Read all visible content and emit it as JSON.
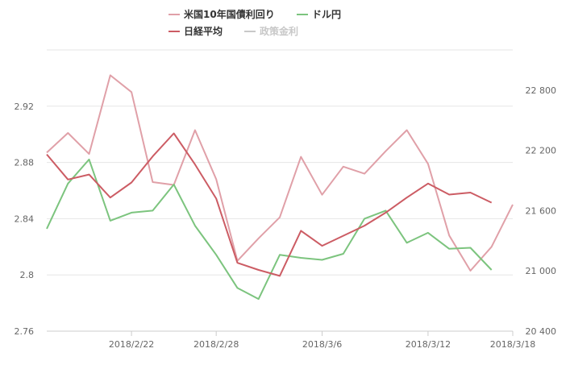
{
  "chart_data": {
    "type": "line",
    "x_labels": [
      "2018/2/22",
      "2018/2/28",
      "2018/3/6",
      "2018/3/12",
      "2018/3/18"
    ],
    "x_label_index": [
      4,
      8,
      13,
      18,
      22
    ],
    "left_axis": {
      "ticks": [
        "2.76",
        "2.8",
        "2.84",
        "2.88",
        "2.92"
      ],
      "ylim": [
        2.76,
        2.96
      ]
    },
    "right_axis": {
      "ticks": [
        "20 400",
        "21 000",
        "21 600",
        "22 200",
        "22 800"
      ],
      "ylim": [
        20400,
        23200
      ]
    },
    "grid": "horizontal",
    "legend_position": "top-center",
    "series": [
      {
        "name": "米国10年国債利回り",
        "axis": "left",
        "color": "#e0a0a8",
        "values": [
          2.887,
          2.901,
          2.886,
          2.942,
          2.93,
          2.866,
          2.864,
          2.903,
          2.868,
          2.81,
          2.826,
          2.841,
          2.884,
          2.857,
          2.877,
          2.872,
          2.888,
          2.903,
          2.879,
          2.828,
          2.803,
          2.82,
          2.85
        ]
      },
      {
        "name": "ドル円",
        "axis": "right",
        "color": "#7cc47e",
        "values": [
          21420,
          21870,
          22110,
          21500,
          21580,
          21600,
          21860,
          21450,
          21160,
          20830,
          20720,
          21160,
          21130,
          21110,
          21170,
          21520,
          21600,
          21280,
          21380,
          21220,
          21230,
          21010,
          null
        ]
      },
      {
        "name": "日経平均",
        "axis": "right",
        "color": "#cc5c64",
        "values": [
          22160,
          21910,
          21960,
          21730,
          21880,
          22140,
          22370,
          22060,
          21720,
          21080,
          21010,
          20950,
          21400,
          21250,
          21350,
          21450,
          21580,
          21730,
          21870,
          21760,
          21780,
          21680,
          null
        ]
      },
      {
        "name": "政策金利",
        "axis": "left",
        "color": "#c8c8c8",
        "hidden": true,
        "values": []
      }
    ]
  }
}
